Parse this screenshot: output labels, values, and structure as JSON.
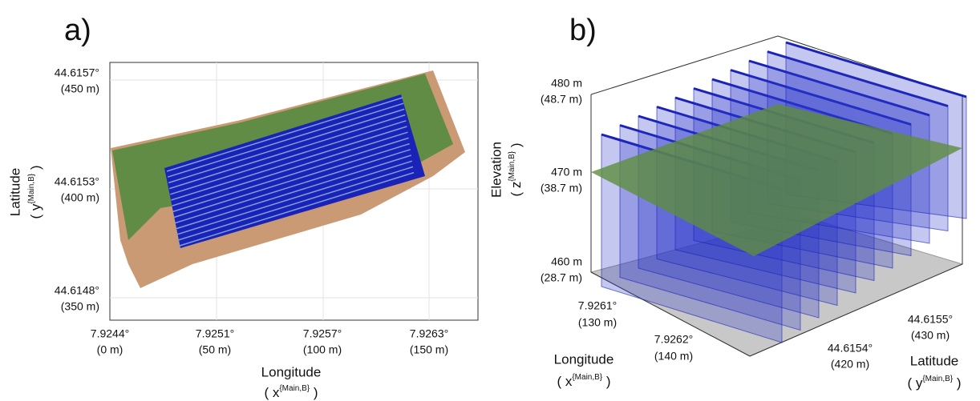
{
  "panel_a": {
    "label": "a)",
    "x_axis": {
      "title": "Longitude",
      "unit": {
        "prefix": "( x",
        "superscript": "{Main,B}",
        "suffix": " )"
      },
      "ticks": [
        {
          "deg": "7.9244°",
          "m": "(0 m)"
        },
        {
          "deg": "7.9251°",
          "m": "(50 m)"
        },
        {
          "deg": "7.9257°",
          "m": "(100 m)"
        },
        {
          "deg": "7.9263°",
          "m": "(150 m)"
        }
      ]
    },
    "y_axis": {
      "title": "Latitude",
      "unit": {
        "prefix": "( y",
        "superscript": "{Main,B}",
        "suffix": " )"
      },
      "ticks": [
        {
          "deg": "44.6157°",
          "m": "(450 m)"
        },
        {
          "deg": "44.6153°",
          "m": "(400 m)"
        },
        {
          "deg": "44.6148°",
          "m": "(350 m)"
        }
      ]
    }
  },
  "panel_b": {
    "label": "b)",
    "z_axis": {
      "title": "Elevation",
      "unit": {
        "prefix": "( z",
        "superscript": "{Main,B}",
        "suffix": " )"
      },
      "ticks": [
        {
          "deg": "480 m",
          "m": "(48.7 m)"
        },
        {
          "deg": "470 m",
          "m": "(38.7 m)"
        },
        {
          "deg": "460 m",
          "m": "(28.7 m)"
        }
      ]
    },
    "x_axis": {
      "title": "Longitude",
      "unit": {
        "prefix": "( x",
        "superscript": "{Main,B}",
        "suffix": " )"
      },
      "ticks": [
        {
          "deg": "7.9261°",
          "m": "(130 m)"
        },
        {
          "deg": "7.9262°",
          "m": "(140 m)"
        }
      ]
    },
    "y_axis": {
      "title": "Latitude",
      "unit": {
        "prefix": "( y",
        "superscript": "{Main,B}",
        "suffix": " )"
      },
      "ticks": [
        {
          "deg": "44.6155°",
          "m": "(430 m)"
        },
        {
          "deg": "44.6154°",
          "m": "(420 m)"
        }
      ]
    }
  }
}
